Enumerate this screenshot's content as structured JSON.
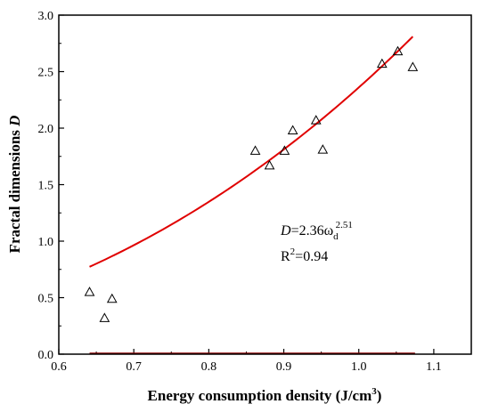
{
  "chart_data": {
    "type": "scatter",
    "xlabel": "Energy consumption density (J/cm",
    "xlabel_sup": "3",
    "xlabel_end": ")",
    "ylabel": "Fractal dimensions ",
    "ylabel_italic": "D",
    "xlim": [
      0.6,
      1.15
    ],
    "ylim": [
      0.0,
      3.0
    ],
    "xticks": [
      "0.6",
      "0.7",
      "0.8",
      "0.9",
      "1.0",
      "1.1"
    ],
    "yticks": [
      "0.0",
      "0.5",
      "1.0",
      "1.5",
      "2.0",
      "2.5",
      "3.0"
    ],
    "series": [
      {
        "marker": "triangle-open",
        "color": "#000000",
        "points": [
          {
            "x": 0.641,
            "y": 0.55
          },
          {
            "x": 0.661,
            "y": 0.32
          },
          {
            "x": 0.671,
            "y": 0.49
          },
          {
            "x": 0.862,
            "y": 1.8
          },
          {
            "x": 0.881,
            "y": 1.67
          },
          {
            "x": 0.901,
            "y": 1.8
          },
          {
            "x": 0.912,
            "y": 1.98
          },
          {
            "x": 0.943,
            "y": 2.07
          },
          {
            "x": 0.952,
            "y": 1.81
          },
          {
            "x": 1.031,
            "y": 2.57
          },
          {
            "x": 1.052,
            "y": 2.68
          },
          {
            "x": 1.072,
            "y": 2.54
          }
        ]
      }
    ],
    "fit": {
      "color": "#e00000",
      "coef": 2.36,
      "exponent": 2.51,
      "x_range": [
        0.641,
        1.072
      ]
    },
    "baseline_color": "#8b0000",
    "annotation": {
      "line1_pre": "D",
      "line1_mid": "=2.36ω",
      "line1_sub": "d",
      "line1_sup": "2.51",
      "line2_pre": "R",
      "line2_sup": "2",
      "line2_post": "=0.94"
    }
  }
}
